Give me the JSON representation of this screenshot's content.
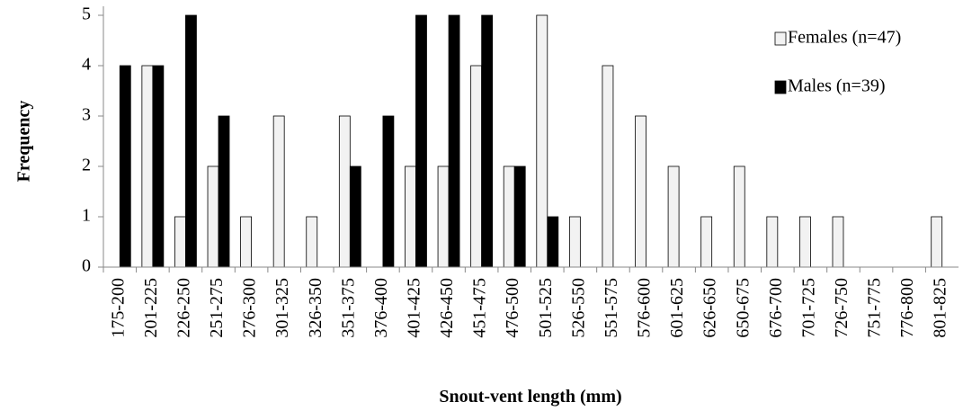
{
  "chart_data": {
    "type": "bar",
    "x_label": "Snout-vent length (mm)",
    "y_label": "Frequency",
    "categories": [
      "175-200",
      "201-225",
      "226-250",
      "251-275",
      "276-300",
      "301-325",
      "326-350",
      "351-375",
      "376-400",
      "401-425",
      "426-450",
      "451-475",
      "476-500",
      "501-525",
      "526-550",
      "551-575",
      "576-600",
      "601-625",
      "626-650",
      "650-675",
      "676-700",
      "701-725",
      "726-750",
      "751-775",
      "776-800",
      "801-825"
    ],
    "series": [
      {
        "name": "Females (n=47)",
        "color": "#f2f2f2",
        "values": [
          0,
          4,
          1,
          2,
          1,
          3,
          1,
          3,
          0,
          2,
          2,
          4,
          2,
          5,
          1,
          4,
          3,
          2,
          1,
          2,
          1,
          1,
          1,
          0,
          0,
          1
        ]
      },
      {
        "name": "Males (n=39)",
        "color": "#000000",
        "values": [
          4,
          4,
          5,
          3,
          0,
          0,
          0,
          2,
          3,
          5,
          5,
          5,
          2,
          1,
          0,
          0,
          0,
          0,
          0,
          0,
          0,
          0,
          0,
          0,
          0,
          0
        ]
      }
    ],
    "ylim": [
      0,
      5
    ],
    "yticks": [
      0,
      1,
      2,
      3,
      4,
      5
    ],
    "legend": "upper right"
  }
}
